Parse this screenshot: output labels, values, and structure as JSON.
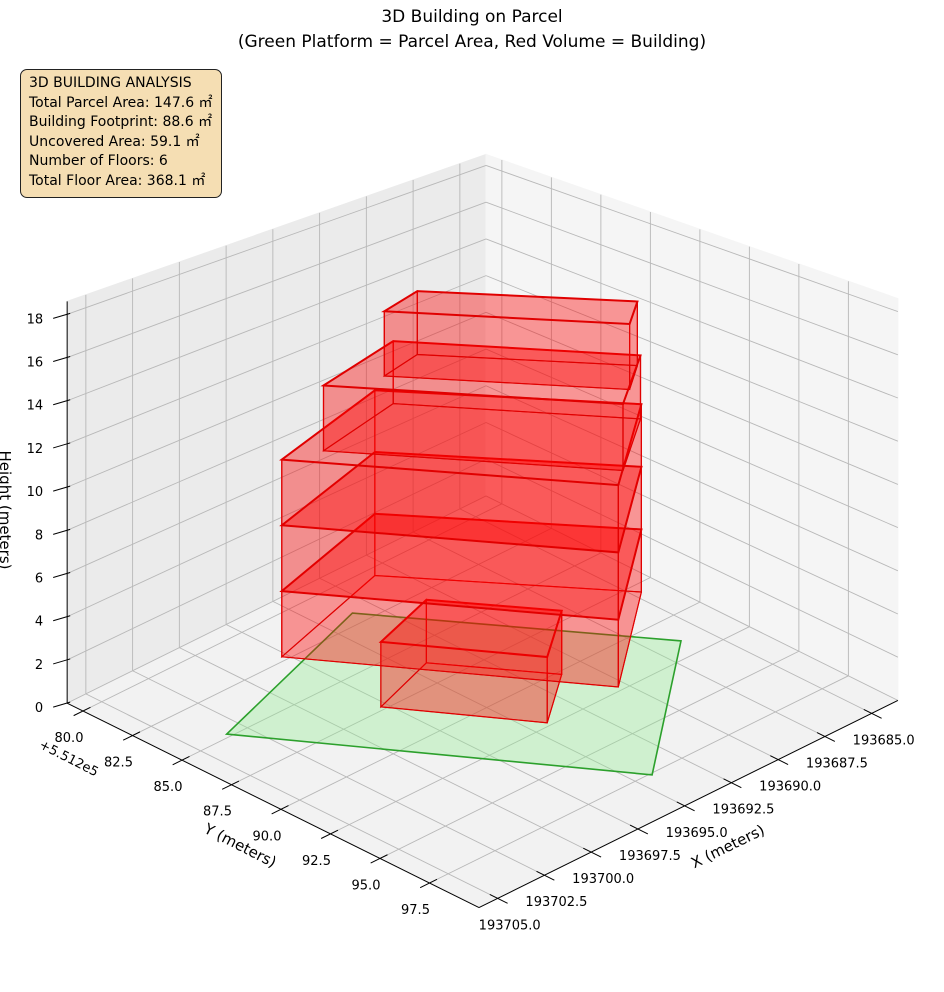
{
  "chart_data": {
    "type": "3d-polygons",
    "title": "3D Building on Parcel",
    "subtitle": "(Green Platform = Parcel Area, Red Volume = Building)",
    "xlabel": "X (meters)",
    "ylabel": "Y (meters)",
    "zlabel": "Height (meters)",
    "y_offset_text": "+5.512e5",
    "xlim": [
      193683.6,
      193706.0
    ],
    "ylim": [
      79.2,
      100.0
    ],
    "zlim": [
      0,
      18.6
    ],
    "grid": true,
    "x_ticks": [
      193685.0,
      193687.5,
      193690.0,
      193692.5,
      193695.0,
      193697.5,
      193700.0,
      193702.5,
      193705.0
    ],
    "x_tick_labels": [
      "193685.0",
      "193687.5",
      "193690.0",
      "193692.5",
      "193695.0",
      "193697.5",
      "193700.0",
      "193702.5",
      "193705.0"
    ],
    "y_ticks": [
      80.0,
      82.5,
      85.0,
      87.5,
      90.0,
      92.5,
      95.0,
      97.5
    ],
    "y_tick_labels": [
      "80.0",
      "82.5",
      "85.0",
      "87.5",
      "90.0",
      "92.5",
      "95.0",
      "97.5"
    ],
    "z_ticks": [
      0,
      2,
      4,
      6,
      8,
      10,
      12,
      14,
      16,
      18
    ],
    "z_tick_labels": [
      "0",
      "2",
      "4",
      "6",
      "8",
      "10",
      "12",
      "14",
      "16",
      "18"
    ],
    "parcel": {
      "name": "Parcel Area",
      "color": "#2ca02c",
      "fill": "#90ee90",
      "z": 0,
      "corners": [
        [
          193703.4,
          84.8
        ],
        [
          193693.5,
          81.8
        ],
        [
          193686.2,
          91.5
        ],
        [
          193694.2,
          97.6
        ]
      ]
    },
    "building": {
      "name": "Building",
      "color": "#e00000",
      "fill": "#ff0000",
      "floors": [
        {
          "floor": 1,
          "z0": 0,
          "z1": 3,
          "corners": [
            [
              193697.8,
              87.3
            ],
            [
              193694.2,
              92.3
            ],
            [
              193691.2,
              90.2
            ],
            [
              193694.2,
              86.2
            ]
          ]
        },
        {
          "floor": 2,
          "z0": 3,
          "z1": 6,
          "corners": [
            [
              193701.3,
              85.6
            ],
            [
              193694.0,
              95.7
            ],
            [
              193688.0,
              91.2
            ],
            [
              193694.2,
              83.6
            ]
          ]
        },
        {
          "floor": 3,
          "z0": 6,
          "z1": 9,
          "corners": [
            [
              193701.3,
              85.6
            ],
            [
              193694.0,
              95.7
            ],
            [
              193688.0,
              91.2
            ],
            [
              193694.2,
              83.6
            ]
          ]
        },
        {
          "floor": 4,
          "z0": 9,
          "z1": 12,
          "corners": [
            [
              193701.3,
              85.6
            ],
            [
              193694.0,
              95.7
            ],
            [
              193688.0,
              91.2
            ],
            [
              193694.2,
              83.6
            ]
          ]
        },
        {
          "floor": 5,
          "z0": 12,
          "z1": 15,
          "corners": [
            [
              193699.6,
              86.1
            ],
            [
              193692.9,
              94.9
            ],
            [
              193689.0,
              92.1
            ],
            [
              193694.6,
              84.9
            ]
          ]
        },
        {
          "floor": 6,
          "z0": 15,
          "z1": 18,
          "corners": [
            [
              193697.3,
              87.0
            ],
            [
              193691.7,
              94.1
            ],
            [
              193689.8,
              92.7
            ],
            [
              193694.9,
              86.4
            ]
          ]
        }
      ]
    }
  },
  "info_box": {
    "title": "3D BUILDING ANALYSIS",
    "lines": [
      "Total Parcel Area: 147.6 ㎡",
      "Building Footprint: 88.6 ㎡",
      "Uncovered Area: 59.1 ㎡",
      "Number of Floors: 6",
      "Total Floor Area: 368.1 ㎡"
    ]
  }
}
